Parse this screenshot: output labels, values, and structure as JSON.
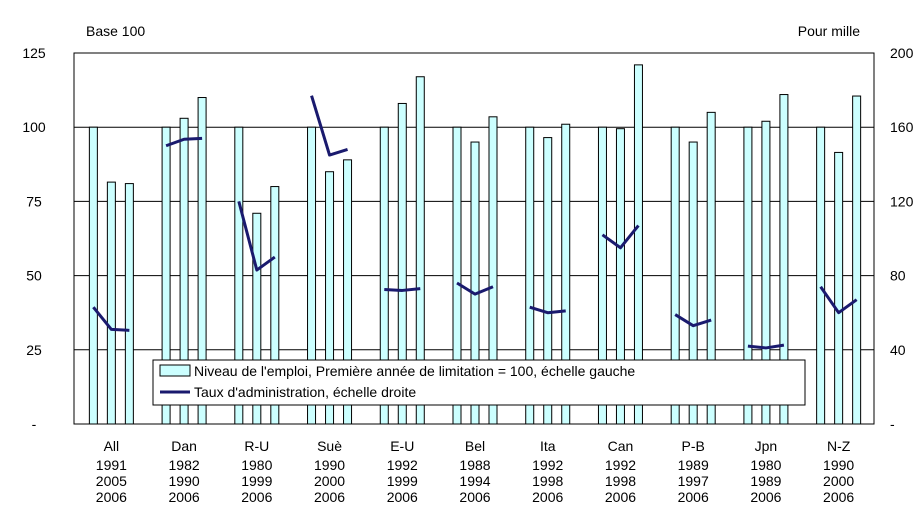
{
  "chart_data": {
    "type": "bar",
    "left_axis_label": "Base 100",
    "right_axis_label": "Pour mille",
    "ylim_left": [
      0,
      125
    ],
    "ylim_right": [
      0,
      200
    ],
    "left_ticks": [
      {
        "value": 0,
        "label": "-"
      },
      {
        "value": 25,
        "label": "25"
      },
      {
        "value": 50,
        "label": "50"
      },
      {
        "value": 75,
        "label": "75"
      },
      {
        "value": 100,
        "label": "100"
      },
      {
        "value": 125,
        "label": "125"
      }
    ],
    "right_ticks": [
      {
        "value": 0,
        "label": "-"
      },
      {
        "value": 40,
        "label": "40"
      },
      {
        "value": 80,
        "label": "80"
      },
      {
        "value": 120,
        "label": "120"
      },
      {
        "value": 160,
        "label": "160"
      },
      {
        "value": 200,
        "label": "200"
      }
    ],
    "grid": true,
    "legend_position": "bottom-center-inside",
    "colors": {
      "bar_fill": "#ccffff",
      "bar_stroke": "#000000",
      "line": "#1a1a6e",
      "grid": "#000000"
    },
    "categories": [
      {
        "name": "All",
        "years": [
          "1991",
          "2005",
          "2006"
        ],
        "employment": [
          100,
          81.5,
          81
        ],
        "admin_rate": [
          63,
          51,
          50.5
        ]
      },
      {
        "name": "Dan",
        "years": [
          "1982",
          "1990",
          "2006"
        ],
        "employment": [
          100,
          103,
          110
        ],
        "admin_rate": [
          150,
          153.5,
          154
        ]
      },
      {
        "name": "R-U",
        "years": [
          "1980",
          "1999",
          "2006"
        ],
        "employment": [
          100,
          71,
          80
        ],
        "admin_rate": [
          120,
          83,
          90
        ]
      },
      {
        "name": "Suè",
        "years": [
          "1990",
          "2000",
          "2006"
        ],
        "employment": [
          100,
          85,
          89
        ],
        "admin_rate": [
          177,
          145,
          148
        ]
      },
      {
        "name": "E-U",
        "years": [
          "1992",
          "1999",
          "2006"
        ],
        "employment": [
          100,
          108,
          117
        ],
        "admin_rate": [
          72.5,
          72,
          73
        ]
      },
      {
        "name": "Bel",
        "years": [
          "1988",
          "1994",
          "2006"
        ],
        "employment": [
          100,
          95,
          103.5
        ],
        "admin_rate": [
          76,
          70,
          74
        ]
      },
      {
        "name": "Ita",
        "years": [
          "1992",
          "1998",
          "2006"
        ],
        "employment": [
          100,
          96.5,
          101
        ],
        "admin_rate": [
          63,
          60,
          61
        ]
      },
      {
        "name": "Can",
        "years": [
          "1992",
          "1998",
          "2006"
        ],
        "employment": [
          100,
          99.5,
          121
        ],
        "admin_rate": [
          102,
          95,
          107
        ]
      },
      {
        "name": "P-B",
        "years": [
          "1989",
          "1997",
          "2006"
        ],
        "employment": [
          100,
          95,
          105
        ],
        "admin_rate": [
          59,
          53,
          56
        ]
      },
      {
        "name": "Jpn",
        "years": [
          "1980",
          "1989",
          "2006"
        ],
        "employment": [
          100,
          102,
          111
        ],
        "admin_rate": [
          42,
          41,
          42.5
        ]
      },
      {
        "name": "N-Z",
        "years": [
          "1990",
          "2000",
          "2006"
        ],
        "employment": [
          100,
          91.5,
          110.5
        ],
        "admin_rate": [
          74,
          60,
          67
        ]
      }
    ],
    "series": [
      {
        "name": "Niveau de l'emploi, Première année de limitation = 100, échelle gauche",
        "type": "bar",
        "axis": "left"
      },
      {
        "name": "Taux d'administration, échelle droite",
        "type": "line",
        "axis": "right"
      }
    ]
  }
}
